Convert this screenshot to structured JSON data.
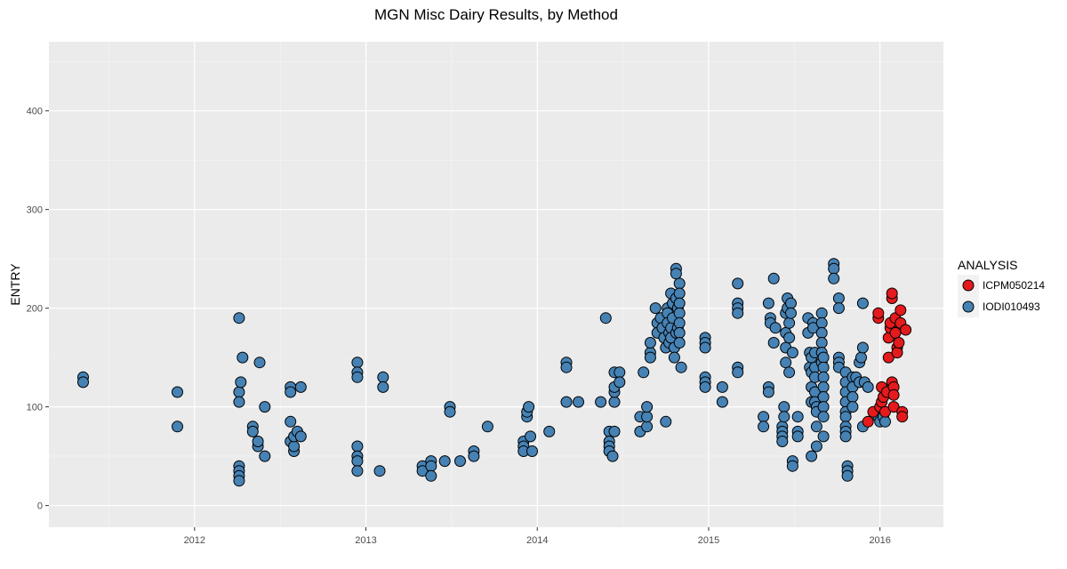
{
  "chart_data": {
    "type": "scatter",
    "title": "MGN Misc Dairy Results, by Method",
    "xlabel": "",
    "ylabel": "ENTRY",
    "xlim": [
      2011.15,
      2016.37
    ],
    "ylim": [
      -22,
      470
    ],
    "x_ticks": [
      2012,
      2013,
      2014,
      2015,
      2016
    ],
    "x_tick_labels": [
      "2012",
      "2013",
      "2014",
      "2015",
      "2016"
    ],
    "y_ticks": [
      0,
      100,
      200,
      300,
      400
    ],
    "y_tick_labels": [
      "0",
      "100",
      "200",
      "300",
      "400"
    ],
    "grid": true,
    "legend": {
      "title": "ANALYSIS",
      "placement": "right"
    },
    "series": [
      {
        "name": "ICPM050214",
        "color": "#e41a1c",
        "points": [
          [
            2015.93,
            85
          ],
          [
            2015.96,
            95
          ],
          [
            2015.99,
            190
          ],
          [
            2015.99,
            195
          ],
          [
            2016.0,
            100
          ],
          [
            2016.01,
            105
          ],
          [
            2016.01,
            120
          ],
          [
            2016.02,
            110
          ],
          [
            2016.03,
            95
          ],
          [
            2016.04,
            115
          ],
          [
            2016.05,
            150
          ],
          [
            2016.05,
            170
          ],
          [
            2016.06,
            180
          ],
          [
            2016.06,
            185
          ],
          [
            2016.07,
            210
          ],
          [
            2016.07,
            215
          ],
          [
            2016.07,
            125
          ],
          [
            2016.08,
            120
          ],
          [
            2016.08,
            112
          ],
          [
            2016.08,
            100
          ],
          [
            2016.09,
            190
          ],
          [
            2016.09,
            175
          ],
          [
            2016.1,
            160
          ],
          [
            2016.1,
            155
          ],
          [
            2016.11,
            165
          ],
          [
            2016.12,
            198
          ],
          [
            2016.12,
            185
          ],
          [
            2016.13,
            95
          ],
          [
            2016.13,
            90
          ],
          [
            2016.15,
            178
          ]
        ]
      },
      {
        "name": "IODI010493",
        "color": "#4682b4",
        "points": [
          [
            2011.35,
            130
          ],
          [
            2011.35,
            125
          ],
          [
            2011.9,
            115
          ],
          [
            2011.9,
            80
          ],
          [
            2012.26,
            190
          ],
          [
            2012.26,
            115
          ],
          [
            2012.26,
            105
          ],
          [
            2012.26,
            40
          ],
          [
            2012.26,
            35
          ],
          [
            2012.26,
            30
          ],
          [
            2012.26,
            25
          ],
          [
            2012.27,
            125
          ],
          [
            2012.28,
            150
          ],
          [
            2012.34,
            80
          ],
          [
            2012.34,
            75
          ],
          [
            2012.37,
            60
          ],
          [
            2012.37,
            65
          ],
          [
            2012.38,
            145
          ],
          [
            2012.41,
            100
          ],
          [
            2012.41,
            50
          ],
          [
            2012.56,
            120
          ],
          [
            2012.56,
            115
          ],
          [
            2012.56,
            85
          ],
          [
            2012.56,
            65
          ],
          [
            2012.58,
            55
          ],
          [
            2012.58,
            60
          ],
          [
            2012.58,
            70
          ],
          [
            2012.6,
            75
          ],
          [
            2012.62,
            120
          ],
          [
            2012.62,
            70
          ],
          [
            2012.95,
            145
          ],
          [
            2012.95,
            135
          ],
          [
            2012.95,
            130
          ],
          [
            2012.95,
            60
          ],
          [
            2012.95,
            50
          ],
          [
            2012.95,
            45
          ],
          [
            2012.95,
            35
          ],
          [
            2013.08,
            35
          ],
          [
            2013.1,
            130
          ],
          [
            2013.1,
            120
          ],
          [
            2013.33,
            40
          ],
          [
            2013.33,
            35
          ],
          [
            2013.38,
            45
          ],
          [
            2013.38,
            40
          ],
          [
            2013.38,
            30
          ],
          [
            2013.46,
            45
          ],
          [
            2013.49,
            100
          ],
          [
            2013.49,
            95
          ],
          [
            2013.55,
            45
          ],
          [
            2013.63,
            55
          ],
          [
            2013.63,
            50
          ],
          [
            2013.71,
            80
          ],
          [
            2013.92,
            65
          ],
          [
            2013.92,
            60
          ],
          [
            2013.92,
            55
          ],
          [
            2013.94,
            90
          ],
          [
            2013.94,
            95
          ],
          [
            2013.95,
            100
          ],
          [
            2013.96,
            70
          ],
          [
            2013.97,
            55
          ],
          [
            2014.07,
            75
          ],
          [
            2014.17,
            145
          ],
          [
            2014.17,
            140
          ],
          [
            2014.17,
            105
          ],
          [
            2014.24,
            105
          ],
          [
            2014.37,
            105
          ],
          [
            2014.4,
            190
          ],
          [
            2014.42,
            75
          ],
          [
            2014.42,
            65
          ],
          [
            2014.42,
            60
          ],
          [
            2014.42,
            55
          ],
          [
            2014.44,
            50
          ],
          [
            2014.45,
            75
          ],
          [
            2014.45,
            105
          ],
          [
            2014.45,
            115
          ],
          [
            2014.45,
            120
          ],
          [
            2014.45,
            135
          ],
          [
            2014.48,
            135
          ],
          [
            2014.48,
            125
          ],
          [
            2014.6,
            90
          ],
          [
            2014.6,
            75
          ],
          [
            2014.62,
            135
          ],
          [
            2014.64,
            80
          ],
          [
            2014.64,
            90
          ],
          [
            2014.64,
            100
          ],
          [
            2014.66,
            155
          ],
          [
            2014.66,
            150
          ],
          [
            2014.66,
            165
          ],
          [
            2014.69,
            200
          ],
          [
            2014.7,
            185
          ],
          [
            2014.7,
            175
          ],
          [
            2014.72,
            190
          ],
          [
            2014.73,
            180
          ],
          [
            2014.74,
            170
          ],
          [
            2014.75,
            160
          ],
          [
            2014.75,
            85
          ],
          [
            2014.76,
            200
          ],
          [
            2014.76,
            195
          ],
          [
            2014.76,
            185
          ],
          [
            2014.77,
            175
          ],
          [
            2014.77,
            165
          ],
          [
            2014.78,
            215
          ],
          [
            2014.78,
            180
          ],
          [
            2014.78,
            170
          ],
          [
            2014.79,
            205
          ],
          [
            2014.79,
            190
          ],
          [
            2014.8,
            160
          ],
          [
            2014.8,
            150
          ],
          [
            2014.81,
            240
          ],
          [
            2014.81,
            235
          ],
          [
            2014.81,
            210
          ],
          [
            2014.81,
            175
          ],
          [
            2014.82,
            200
          ],
          [
            2014.82,
            180
          ],
          [
            2014.83,
            225
          ],
          [
            2014.83,
            215
          ],
          [
            2014.83,
            205
          ],
          [
            2014.83,
            195
          ],
          [
            2014.83,
            185
          ],
          [
            2014.83,
            175
          ],
          [
            2014.83,
            165
          ],
          [
            2014.84,
            140
          ],
          [
            2014.98,
            170
          ],
          [
            2014.98,
            165
          ],
          [
            2014.98,
            160
          ],
          [
            2014.98,
            130
          ],
          [
            2014.98,
            125
          ],
          [
            2014.98,
            120
          ],
          [
            2015.08,
            120
          ],
          [
            2015.08,
            105
          ],
          [
            2015.17,
            225
          ],
          [
            2015.17,
            205
          ],
          [
            2015.17,
            200
          ],
          [
            2015.17,
            195
          ],
          [
            2015.17,
            140
          ],
          [
            2015.17,
            135
          ],
          [
            2015.32,
            90
          ],
          [
            2015.32,
            80
          ],
          [
            2015.35,
            120
          ],
          [
            2015.35,
            115
          ],
          [
            2015.35,
            205
          ],
          [
            2015.36,
            190
          ],
          [
            2015.36,
            185
          ],
          [
            2015.38,
            230
          ],
          [
            2015.38,
            165
          ],
          [
            2015.39,
            180
          ],
          [
            2015.43,
            80
          ],
          [
            2015.43,
            75
          ],
          [
            2015.43,
            70
          ],
          [
            2015.43,
            65
          ],
          [
            2015.44,
            100
          ],
          [
            2015.44,
            90
          ],
          [
            2015.45,
            195
          ],
          [
            2015.45,
            175
          ],
          [
            2015.45,
            160
          ],
          [
            2015.45,
            145
          ],
          [
            2015.46,
            210
          ],
          [
            2015.46,
            200
          ],
          [
            2015.47,
            185
          ],
          [
            2015.47,
            170
          ],
          [
            2015.47,
            135
          ],
          [
            2015.48,
            205
          ],
          [
            2015.48,
            195
          ],
          [
            2015.49,
            155
          ],
          [
            2015.49,
            45
          ],
          [
            2015.49,
            40
          ],
          [
            2015.52,
            90
          ],
          [
            2015.52,
            75
          ],
          [
            2015.52,
            70
          ],
          [
            2015.58,
            190
          ],
          [
            2015.58,
            175
          ],
          [
            2015.59,
            155
          ],
          [
            2015.59,
            140
          ],
          [
            2015.6,
            150
          ],
          [
            2015.6,
            135
          ],
          [
            2015.6,
            120
          ],
          [
            2015.6,
            105
          ],
          [
            2015.6,
            50
          ],
          [
            2015.61,
            185
          ],
          [
            2015.61,
            180
          ],
          [
            2015.62,
            155
          ],
          [
            2015.62,
            140
          ],
          [
            2015.62,
            130
          ],
          [
            2015.62,
            115
          ],
          [
            2015.62,
            105
          ],
          [
            2015.63,
            100
          ],
          [
            2015.63,
            95
          ],
          [
            2015.63,
            80
          ],
          [
            2015.63,
            60
          ],
          [
            2015.66,
            195
          ],
          [
            2015.66,
            185
          ],
          [
            2015.66,
            175
          ],
          [
            2015.66,
            165
          ],
          [
            2015.66,
            155
          ],
          [
            2015.66,
            145
          ],
          [
            2015.67,
            150
          ],
          [
            2015.67,
            140
          ],
          [
            2015.67,
            130
          ],
          [
            2015.67,
            120
          ],
          [
            2015.67,
            110
          ],
          [
            2015.67,
            100
          ],
          [
            2015.67,
            90
          ],
          [
            2015.67,
            70
          ],
          [
            2015.73,
            245
          ],
          [
            2015.73,
            240
          ],
          [
            2015.73,
            230
          ],
          [
            2015.76,
            210
          ],
          [
            2015.76,
            200
          ],
          [
            2015.76,
            150
          ],
          [
            2015.76,
            145
          ],
          [
            2015.76,
            140
          ],
          [
            2015.8,
            135
          ],
          [
            2015.8,
            125
          ],
          [
            2015.8,
            115
          ],
          [
            2015.8,
            105
          ],
          [
            2015.8,
            95
          ],
          [
            2015.8,
            90
          ],
          [
            2015.8,
            80
          ],
          [
            2015.8,
            75
          ],
          [
            2015.8,
            70
          ],
          [
            2015.81,
            40
          ],
          [
            2015.81,
            35
          ],
          [
            2015.81,
            30
          ],
          [
            2015.84,
            130
          ],
          [
            2015.84,
            120
          ],
          [
            2015.84,
            110
          ],
          [
            2015.84,
            100
          ],
          [
            2015.86,
            130
          ],
          [
            2015.88,
            145
          ],
          [
            2015.88,
            125
          ],
          [
            2015.89,
            150
          ],
          [
            2015.9,
            205
          ],
          [
            2015.9,
            160
          ],
          [
            2015.9,
            80
          ],
          [
            2015.91,
            125
          ],
          [
            2015.93,
            120
          ],
          [
            2015.98,
            95
          ],
          [
            2015.99,
            90
          ],
          [
            2016.0,
            85
          ],
          [
            2016.02,
            90
          ],
          [
            2016.03,
            85
          ]
        ]
      }
    ]
  }
}
